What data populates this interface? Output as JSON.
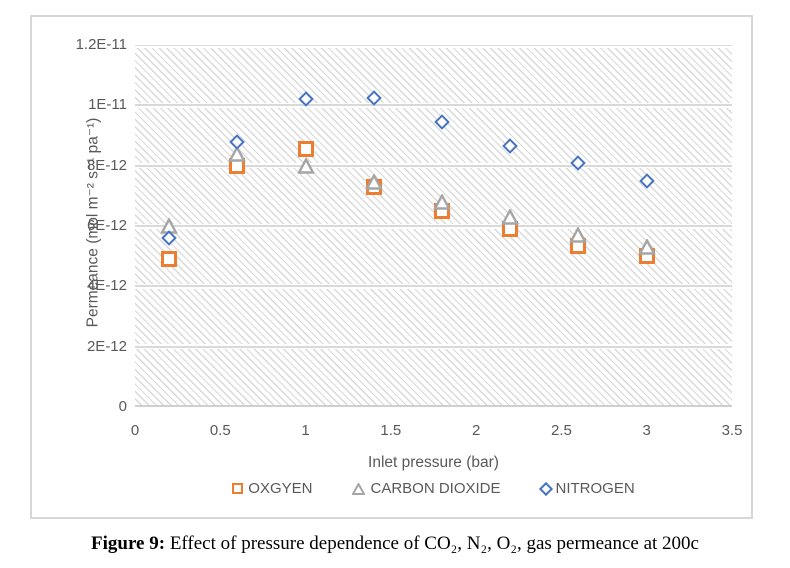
{
  "chart_data": {
    "type": "scatter",
    "x": [
      0.2,
      0.6,
      1.0,
      1.4,
      1.8,
      2.2,
      2.6,
      3.0
    ],
    "series": [
      {
        "name": "OXGYEN",
        "marker": "square",
        "color": "#ED7D31",
        "values": [
          4.9e-12,
          8e-12,
          8.55e-12,
          7.3e-12,
          6.5e-12,
          5.9e-12,
          5.35e-12,
          5e-12
        ]
      },
      {
        "name": "CARBON DIOXIDE",
        "marker": "triangle",
        "color": "#A6A6A6",
        "values": [
          6e-12,
          8.4e-12,
          8e-12,
          7.45e-12,
          6.8e-12,
          6.3e-12,
          5.7e-12,
          5.3e-12
        ]
      },
      {
        "name": "NITROGEN",
        "marker": "diamond",
        "color": "#4472C4",
        "values": [
          5.6e-12,
          8.8e-12,
          1.02e-11,
          1.025e-11,
          9.45e-12,
          8.65e-12,
          8.1e-12,
          7.5e-12
        ]
      }
    ],
    "title": "",
    "xlabel": "Inlet pressure (bar)",
    "ylabel": "Permeance (mol m⁻² s⁻¹ pa⁻¹)",
    "xlim": [
      0,
      3.5
    ],
    "ylim": [
      0,
      1.2e-11
    ],
    "x_ticks": {
      "values": [
        0,
        0.5,
        1,
        1.5,
        2,
        2.5,
        3,
        3.5
      ],
      "labels": [
        "0",
        "0.5",
        "1",
        "1.5",
        "2",
        "2.5",
        "3",
        "3.5"
      ]
    },
    "y_ticks": {
      "values": [
        0,
        2e-12,
        4e-12,
        6e-12,
        8e-12,
        1e-11,
        1.2e-11
      ],
      "labels": [
        "0",
        "2E-12",
        "4E-12",
        "6E-12",
        "8E-12",
        "1E-11",
        "1.2E-11"
      ]
    },
    "grid": "horizontal",
    "legend_position": "bottom",
    "plot_fill": "diagonal-hatch",
    "colors": {
      "oxygen": "#ED7D31",
      "carbon_dioxide": "#A6A6A6",
      "nitrogen": "#4472C4",
      "axis_text": "#595959",
      "gridline": "#d9d9d9",
      "border": "#d6d6d6"
    }
  },
  "caption": {
    "prefix": "Figure 9:",
    "text": " Effect of pressure dependence of CO₂, N₂, O₂, gas permeance at 200c"
  }
}
